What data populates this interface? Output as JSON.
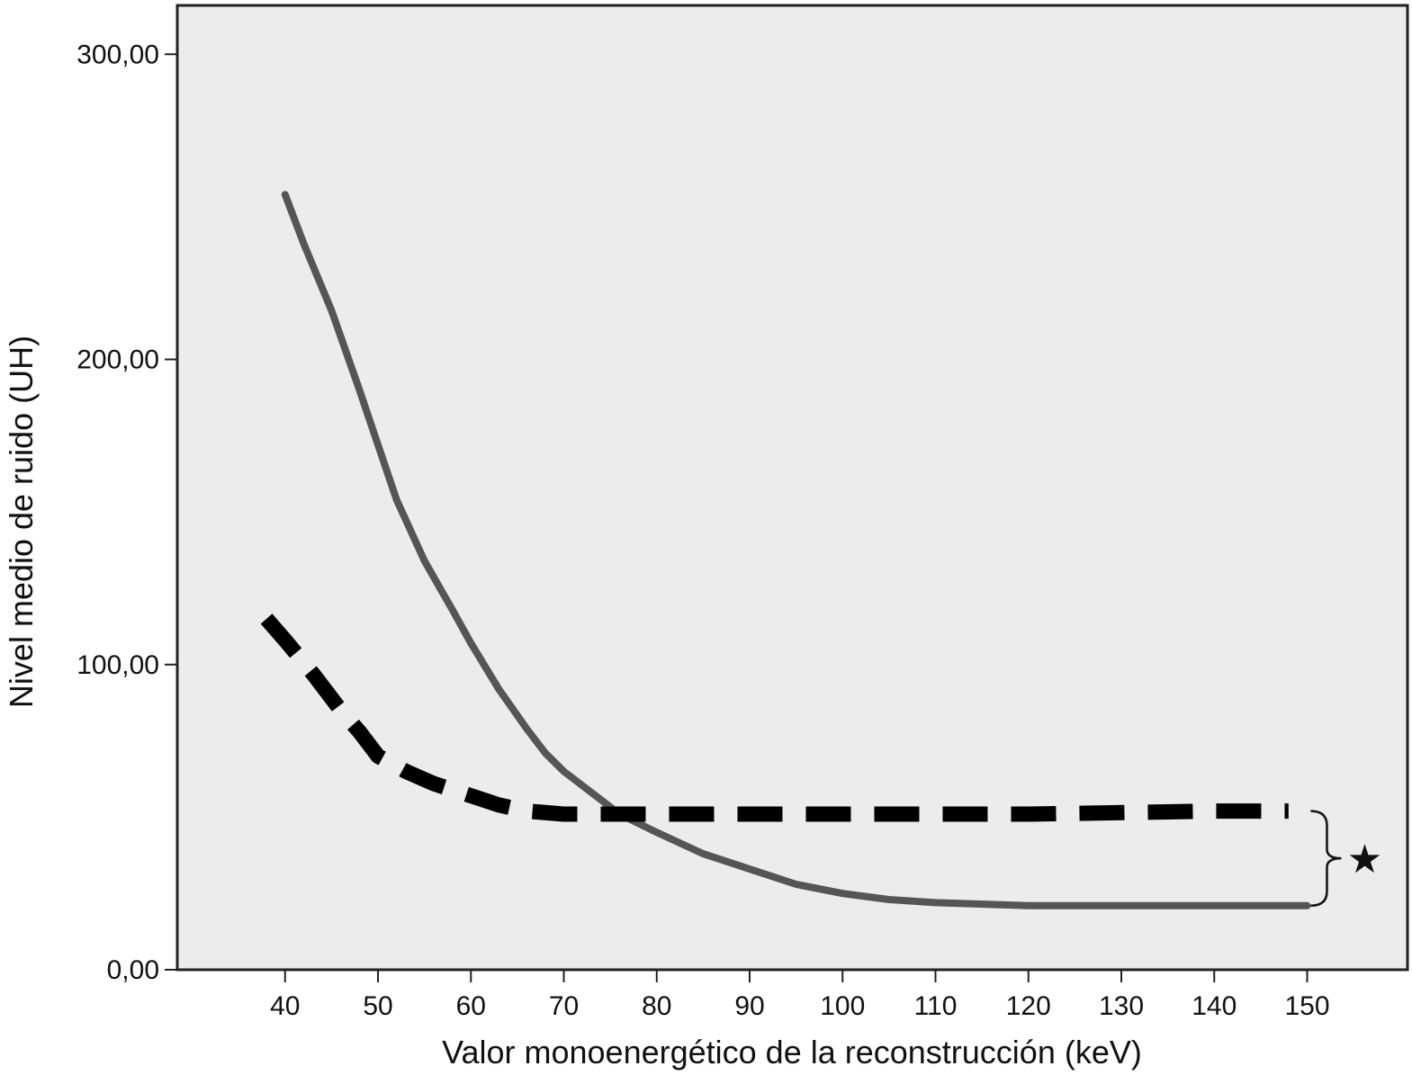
{
  "chart_data": {
    "type": "line",
    "title": "",
    "xlabel": "Valor monoenergético de la reconstrucción (keV)",
    "ylabel": "Nivel medio de ruido (UH)",
    "x_ticks": [
      "40",
      "50",
      "60",
      "70",
      "80",
      "90",
      "100",
      "110",
      "120",
      "130",
      "140",
      "150"
    ],
    "y_ticks": [
      "0,00",
      "100,00",
      "200,00",
      "300,00"
    ],
    "xlim": [
      28.4,
      160.8
    ],
    "ylim": [
      0,
      316
    ],
    "grid": false,
    "background": "#ececec",
    "series": [
      {
        "style": "solid",
        "color": "#555555",
        "points": [
          [
            40,
            254
          ],
          [
            42,
            238
          ],
          [
            45,
            216
          ],
          [
            48,
            190
          ],
          [
            50,
            172
          ],
          [
            52,
            154
          ],
          [
            55,
            134
          ],
          [
            58,
            118
          ],
          [
            60,
            107
          ],
          [
            63,
            92
          ],
          [
            66,
            79
          ],
          [
            68,
            71
          ],
          [
            70,
            65
          ],
          [
            73,
            58
          ],
          [
            76,
            51
          ],
          [
            80,
            45
          ],
          [
            85,
            38
          ],
          [
            90,
            33
          ],
          [
            95,
            28
          ],
          [
            100,
            25
          ],
          [
            105,
            23
          ],
          [
            110,
            22
          ],
          [
            120,
            21
          ],
          [
            130,
            21
          ],
          [
            140,
            21
          ],
          [
            150,
            21
          ]
        ]
      },
      {
        "style": "dashed",
        "color": "#000000",
        "points": [
          [
            38,
            115
          ],
          [
            40,
            108
          ],
          [
            43,
            97
          ],
          [
            46,
            85
          ],
          [
            48,
            78
          ],
          [
            50,
            70
          ],
          [
            53,
            65
          ],
          [
            56,
            61
          ],
          [
            60,
            57
          ],
          [
            63,
            54
          ],
          [
            66,
            52
          ],
          [
            70,
            51
          ],
          [
            80,
            51
          ],
          [
            100,
            51
          ],
          [
            120,
            51
          ],
          [
            140,
            52
          ],
          [
            148,
            52
          ]
        ]
      }
    ],
    "annotation": {
      "symbol": "★",
      "note": "bracket between curves at 150 keV"
    }
  }
}
